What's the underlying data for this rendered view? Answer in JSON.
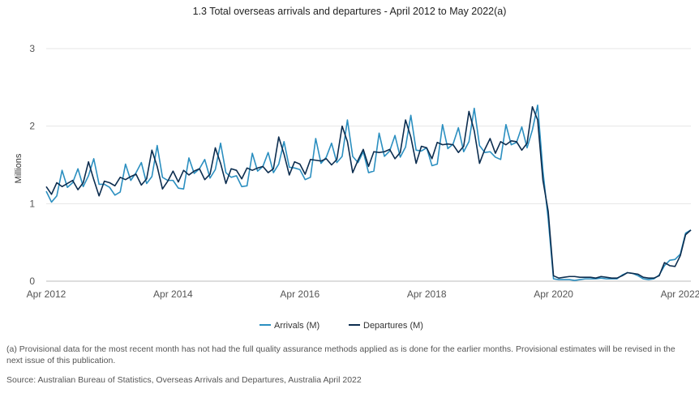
{
  "title": "1.3 Total overseas arrivals and departures - April 2012 to May 2022(a)",
  "footnote": "(a) Provisional data for the most recent month has not had the full quality assurance methods applied as is done for the earlier months. Provisional estimates will be revised in the next issue of this publication.",
  "source": "Source: Australian Bureau of Statistics, Overseas Arrivals and Departures, Australia April 2022",
  "chart_data": {
    "type": "line",
    "title": "1.3 Total overseas arrivals and departures - April 2012 to May 2022(a)",
    "xlabel": "",
    "ylabel": "Millions",
    "ylim": [
      0,
      3
    ],
    "yticks": [
      "0",
      "1",
      "2",
      "3"
    ],
    "xticks": [
      "Apr 2012",
      "Apr 2014",
      "Apr 2016",
      "Apr 2018",
      "Apr 2020",
      "Apr 2022"
    ],
    "x_start": "2012-04",
    "x_end": "2022-05",
    "grid": true,
    "legend_position": "bottom",
    "series": [
      {
        "name": "Arrivals (M)",
        "color": "#2b8fc0",
        "values": [
          1.16,
          1.02,
          1.1,
          1.43,
          1.21,
          1.27,
          1.45,
          1.22,
          1.36,
          1.58,
          1.25,
          1.25,
          1.21,
          1.11,
          1.15,
          1.51,
          1.3,
          1.4,
          1.53,
          1.26,
          1.35,
          1.75,
          1.34,
          1.3,
          1.3,
          1.2,
          1.19,
          1.59,
          1.39,
          1.45,
          1.57,
          1.33,
          1.44,
          1.78,
          1.4,
          1.34,
          1.36,
          1.22,
          1.23,
          1.65,
          1.42,
          1.48,
          1.66,
          1.4,
          1.51,
          1.8,
          1.47,
          1.46,
          1.44,
          1.31,
          1.34,
          1.84,
          1.52,
          1.6,
          1.78,
          1.53,
          1.61,
          2.08,
          1.61,
          1.53,
          1.67,
          1.4,
          1.42,
          1.91,
          1.61,
          1.68,
          1.88,
          1.6,
          1.73,
          2.14,
          1.69,
          1.68,
          1.72,
          1.49,
          1.51,
          2.02,
          1.71,
          1.77,
          1.98,
          1.67,
          1.8,
          2.23,
          1.75,
          1.66,
          1.67,
          1.6,
          1.57,
          2.02,
          1.76,
          1.79,
          1.99,
          1.72,
          1.95,
          2.27,
          1.42,
          0.8,
          0.03,
          0.02,
          0.02,
          0.02,
          0.01,
          0.02,
          0.03,
          0.03,
          0.03,
          0.04,
          0.03,
          0.03,
          0.03,
          0.08,
          0.11,
          0.1,
          0.07,
          0.03,
          0.02,
          0.03,
          0.08,
          0.2,
          0.27,
          0.28,
          0.35,
          0.62,
          0.66
        ]
      },
      {
        "name": "Departures (M)",
        "color": "#0c2d4f",
        "values": [
          1.22,
          1.12,
          1.27,
          1.22,
          1.26,
          1.3,
          1.18,
          1.27,
          1.54,
          1.31,
          1.1,
          1.29,
          1.27,
          1.23,
          1.34,
          1.31,
          1.35,
          1.38,
          1.24,
          1.32,
          1.69,
          1.48,
          1.19,
          1.29,
          1.42,
          1.28,
          1.43,
          1.37,
          1.42,
          1.45,
          1.31,
          1.38,
          1.72,
          1.52,
          1.26,
          1.45,
          1.43,
          1.32,
          1.46,
          1.43,
          1.46,
          1.48,
          1.4,
          1.45,
          1.86,
          1.64,
          1.37,
          1.54,
          1.51,
          1.38,
          1.57,
          1.56,
          1.55,
          1.58,
          1.5,
          1.57,
          2.0,
          1.8,
          1.4,
          1.56,
          1.7,
          1.48,
          1.67,
          1.66,
          1.67,
          1.7,
          1.58,
          1.66,
          2.08,
          1.86,
          1.52,
          1.74,
          1.72,
          1.58,
          1.79,
          1.76,
          1.77,
          1.76,
          1.66,
          1.74,
          2.19,
          1.94,
          1.52,
          1.7,
          1.84,
          1.65,
          1.8,
          1.76,
          1.81,
          1.8,
          1.69,
          1.78,
          2.25,
          2.08,
          1.3,
          0.9,
          0.07,
          0.04,
          0.05,
          0.06,
          0.06,
          0.05,
          0.05,
          0.05,
          0.04,
          0.06,
          0.05,
          0.04,
          0.04,
          0.07,
          0.11,
          0.1,
          0.09,
          0.05,
          0.04,
          0.04,
          0.07,
          0.24,
          0.2,
          0.19,
          0.33,
          0.6,
          0.66
        ]
      }
    ]
  }
}
